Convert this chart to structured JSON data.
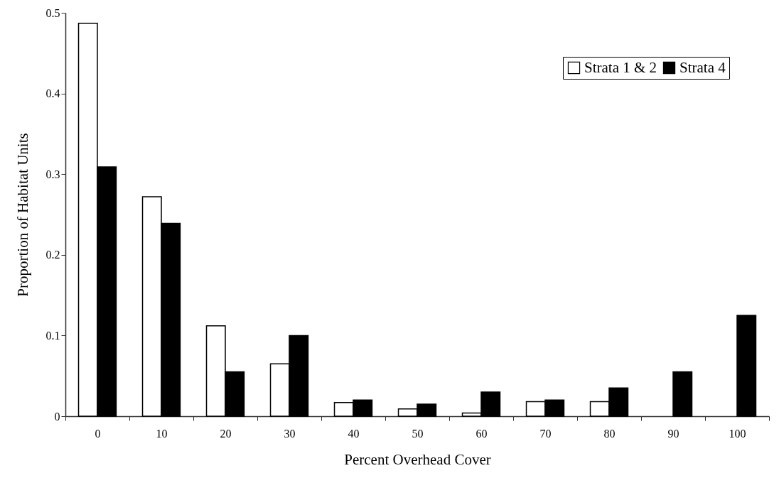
{
  "chart_data": {
    "type": "bar",
    "xlabel": "Percent Overhead Cover",
    "ylabel": "Proportion of Habitat Units",
    "categories": [
      "0",
      "10",
      "20",
      "30",
      "40",
      "50",
      "60",
      "70",
      "80",
      "90",
      "100"
    ],
    "series": [
      {
        "name": "Strata 1 & 2",
        "color": "#ffffff",
        "values": [
          0.487,
          0.272,
          0.112,
          0.065,
          0.017,
          0.009,
          0.004,
          0.018,
          0.018,
          null,
          null
        ]
      },
      {
        "name": "Strata 4",
        "color": "#000000",
        "values": [
          0.309,
          0.239,
          0.055,
          0.1,
          0.02,
          0.015,
          0.03,
          0.02,
          0.035,
          0.055,
          0.125
        ]
      }
    ],
    "ylim": [
      0,
      0.5
    ],
    "yticks": [
      0,
      0.1,
      0.2,
      0.3,
      0.4,
      0.5
    ],
    "grid": false,
    "legend": "top right"
  }
}
